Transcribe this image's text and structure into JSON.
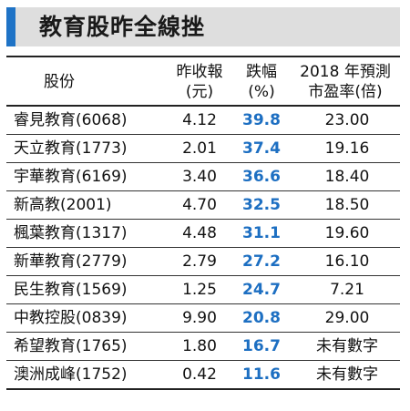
{
  "title": "教育股昨全線挫",
  "colors": {
    "accent": "#1f73c6",
    "title_background": "#dedede",
    "highlight_text": "#1d6fc2"
  },
  "header": {
    "name": "股份",
    "close_line1": "昨收報",
    "close_line2": "(元)",
    "drop_line1": "跌幅",
    "drop_line2": "(%)",
    "pe_line1": "2018 年預測",
    "pe_line2": "市盈率(倍)"
  },
  "rows": [
    {
      "name": "睿見教育(6068)",
      "close": "4.12",
      "drop": "39.8",
      "pe": "23.00"
    },
    {
      "name": "天立教育(1773)",
      "close": "2.01",
      "drop": "37.4",
      "pe": "19.16"
    },
    {
      "name": "宇華教育(6169)",
      "close": "3.40",
      "drop": "36.6",
      "pe": "18.40"
    },
    {
      "name": "新高教(2001)",
      "close": "4.70",
      "drop": "32.5",
      "pe": "18.50"
    },
    {
      "name": "楓葉教育(1317)",
      "close": "4.48",
      "drop": "31.1",
      "pe": "19.60"
    },
    {
      "name": "新華教育(2779)",
      "close": "2.79",
      "drop": "27.2",
      "pe": "16.10"
    },
    {
      "name": "民生教育(1569)",
      "close": "1.25",
      "drop": "24.7",
      "pe": "7.21"
    },
    {
      "name": "中教控股(0839)",
      "close": "9.90",
      "drop": "20.8",
      "pe": "29.00"
    },
    {
      "name": "希望教育(1765)",
      "close": "1.80",
      "drop": "16.7",
      "pe": "未有數字"
    },
    {
      "name": "澳洲成峰(1752)",
      "close": "0.42",
      "drop": "11.6",
      "pe": "未有數字"
    }
  ]
}
